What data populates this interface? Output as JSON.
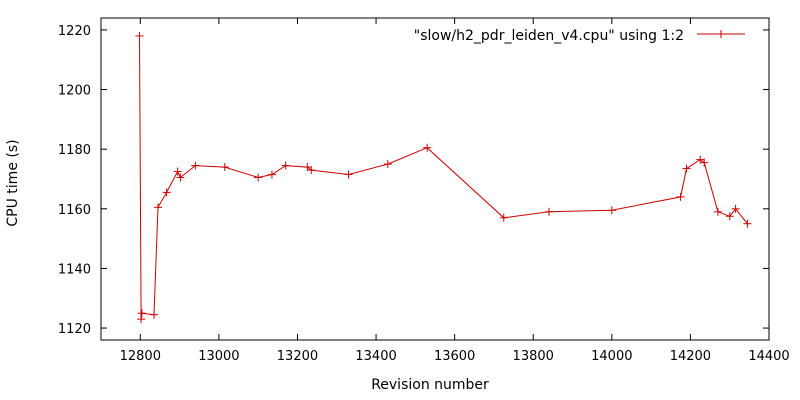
{
  "chart_data": {
    "type": "line",
    "title": "",
    "xlabel": "Revision number",
    "ylabel": "CPU time (s)",
    "xlim": [
      12700,
      14400
    ],
    "ylim": [
      1116,
      1224
    ],
    "x_ticks": [
      12800,
      13000,
      13200,
      13400,
      13600,
      13800,
      14000,
      14200,
      14400
    ],
    "y_ticks": [
      1120,
      1140,
      1160,
      1180,
      1200,
      1220
    ],
    "grid": false,
    "legend_position": "top-right",
    "color": "#cc0000",
    "marker": "plus",
    "series": [
      {
        "name": "\"slow/h2_pdr_leiden_v4.cpu\" using 1:2",
        "x": [
          12798,
          12802,
          12804,
          12835,
          12845,
          12867,
          12895,
          12902,
          12940,
          13015,
          13100,
          13135,
          13170,
          13225,
          13235,
          13330,
          13430,
          13530,
          13725,
          13840,
          14000,
          14175,
          14190,
          14225,
          14235,
          14270,
          14300,
          14315,
          14345
        ],
        "y": [
          1218,
          1123,
          1125,
          1124.5,
          1160.5,
          1165.5,
          1172.5,
          1170.5,
          1174.5,
          1174,
          1170.5,
          1171.5,
          1174.5,
          1174,
          1173,
          1171.5,
          1175,
          1180.5,
          1157,
          1159,
          1159.5,
          1164,
          1173.5,
          1176.5,
          1175.5,
          1159,
          1157.5,
          1160,
          1155
        ]
      }
    ]
  }
}
